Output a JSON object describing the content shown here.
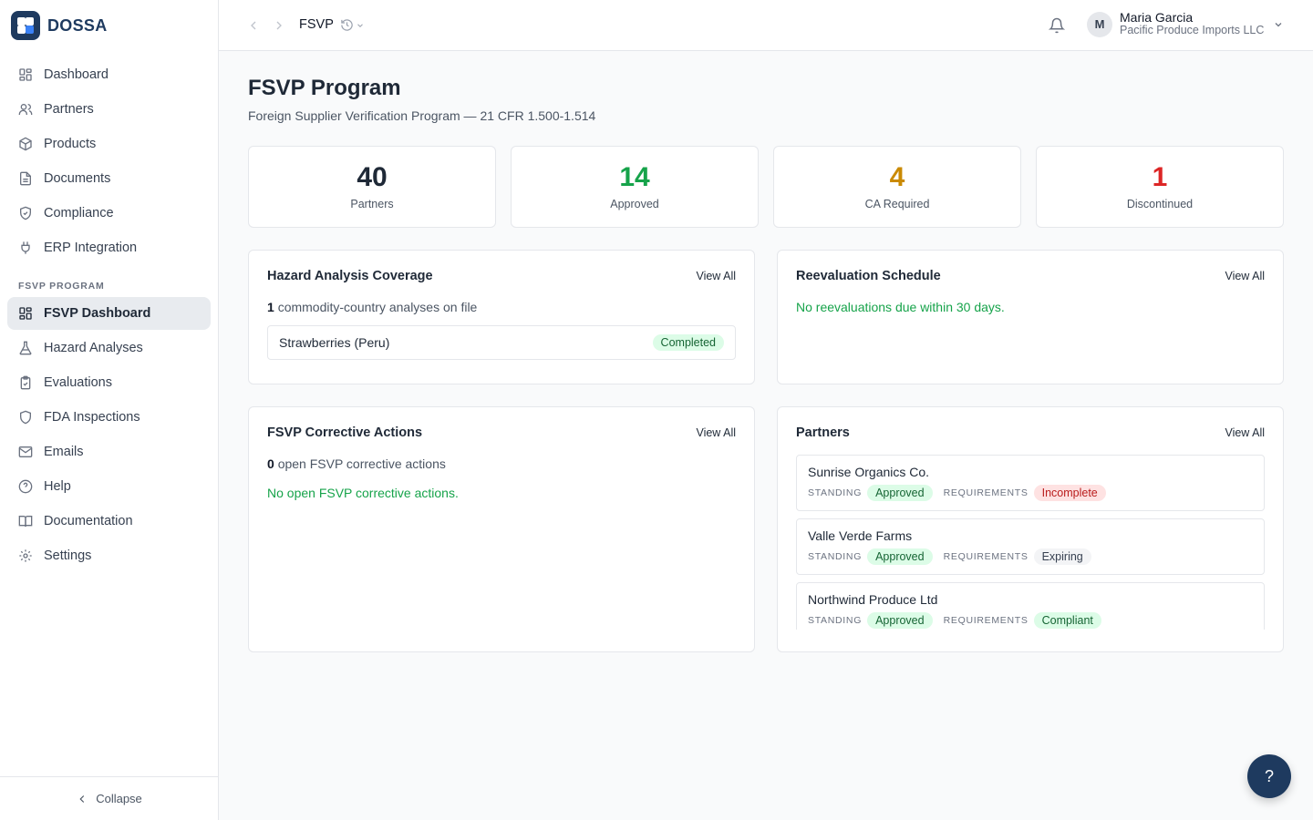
{
  "brand": {
    "name": "DOSSA"
  },
  "sidebar": {
    "items": [
      {
        "label": "Dashboard",
        "icon": "dashboard-icon"
      },
      {
        "label": "Partners",
        "icon": "users-icon"
      },
      {
        "label": "Products",
        "icon": "package-icon"
      },
      {
        "label": "Documents",
        "icon": "document-icon"
      },
      {
        "label": "Compliance",
        "icon": "shield-check-icon"
      },
      {
        "label": "ERP Integration",
        "icon": "plug-icon"
      }
    ],
    "section_label": "FSVP PROGRAM",
    "section_items": [
      {
        "label": "FSVP Dashboard",
        "icon": "dashboard-icon",
        "active": true
      },
      {
        "label": "Hazard Analyses",
        "icon": "flask-icon"
      },
      {
        "label": "Evaluations",
        "icon": "clipboard-check-icon"
      },
      {
        "label": "FDA Inspections",
        "icon": "shield-icon"
      },
      {
        "label": "Emails",
        "icon": "mail-icon"
      },
      {
        "label": "Help",
        "icon": "help-circle-icon"
      },
      {
        "label": "Documentation",
        "icon": "book-icon"
      },
      {
        "label": "Settings",
        "icon": "gear-icon"
      }
    ],
    "collapse_label": "Collapse"
  },
  "topbar": {
    "title": "FSVP",
    "user": {
      "initial": "M",
      "name": "Maria Garcia",
      "org": "Pacific Produce Imports LLC"
    }
  },
  "page": {
    "title": "FSVP Program",
    "subtitle": "Foreign Supplier Verification Program — 21 CFR 1.500-1.514"
  },
  "stats": [
    {
      "value": "40",
      "label": "Partners",
      "color": "#1f2937"
    },
    {
      "value": "14",
      "label": "Approved",
      "color": "#16a34a"
    },
    {
      "value": "4",
      "label": "CA Required",
      "color": "#ca8a04"
    },
    {
      "value": "1",
      "label": "Discontinued",
      "color": "#dc2626"
    }
  ],
  "hazard": {
    "title": "Hazard Analysis Coverage",
    "view_all": "View All",
    "count": "1",
    "count_text": "commodity-country analyses on file",
    "row": {
      "name": "Strawberries (Peru)",
      "status": "Completed"
    }
  },
  "reevaluation": {
    "title": "Reevaluation Schedule",
    "view_all": "View All",
    "message": "No reevaluations due within 30 days."
  },
  "corrective": {
    "title": "FSVP Corrective Actions",
    "view_all": "View All",
    "count": "0",
    "count_text": "open FSVP corrective actions",
    "message": "No open FSVP corrective actions."
  },
  "partners": {
    "title": "Partners",
    "view_all": "View All",
    "standing_label": "STANDING",
    "requirements_label": "REQUIREMENTS",
    "items": [
      {
        "name": "Sunrise Organics Co.",
        "standing": "Approved",
        "requirements": "Incomplete",
        "req_style": "red"
      },
      {
        "name": "Valle Verde Farms",
        "standing": "Approved",
        "requirements": "Expiring",
        "req_style": "gray"
      },
      {
        "name": "Northwind Produce Ltd",
        "standing": "Approved",
        "requirements": "Compliant",
        "req_style": "green"
      }
    ]
  },
  "help_fab": {
    "label": "?"
  }
}
